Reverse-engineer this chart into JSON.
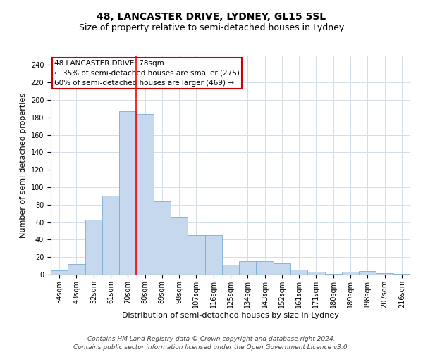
{
  "title": "48, LANCASTER DRIVE, LYDNEY, GL15 5SL",
  "subtitle": "Size of property relative to semi-detached houses in Lydney",
  "xlabel": "Distribution of semi-detached houses by size in Lydney",
  "ylabel": "Number of semi-detached properties",
  "categories": [
    "34sqm",
    "43sqm",
    "52sqm",
    "61sqm",
    "70sqm",
    "80sqm",
    "89sqm",
    "98sqm",
    "107sqm",
    "116sqm",
    "125sqm",
    "134sqm",
    "143sqm",
    "152sqm",
    "161sqm",
    "171sqm",
    "180sqm",
    "189sqm",
    "198sqm",
    "207sqm",
    "216sqm"
  ],
  "values": [
    5,
    12,
    63,
    90,
    187,
    184,
    84,
    66,
    45,
    45,
    11,
    15,
    15,
    13,
    6,
    3,
    1,
    3,
    4,
    2,
    1
  ],
  "bar_color": "#c5d8ed",
  "bar_edge_color": "#7aadd4",
  "red_line_x": 4.5,
  "annotation_title": "48 LANCASTER DRIVE: 78sqm",
  "annotation_line1": "← 35% of semi-detached houses are smaller (275)",
  "annotation_line2": "60% of semi-detached houses are larger (469) →",
  "ylim": [
    0,
    250
  ],
  "yticks": [
    0,
    20,
    40,
    60,
    80,
    100,
    120,
    140,
    160,
    180,
    200,
    220,
    240
  ],
  "footer_line1": "Contains HM Land Registry data © Crown copyright and database right 2024.",
  "footer_line2": "Contains public sector information licensed under the Open Government Licence v3.0.",
  "background_color": "#ffffff",
  "grid_color": "#d4dce8",
  "annotation_box_color": "#ffffff",
  "annotation_box_edge_color": "#cc0000",
  "title_fontsize": 10,
  "subtitle_fontsize": 9,
  "axis_label_fontsize": 8,
  "tick_fontsize": 7,
  "annotation_fontsize": 7.5,
  "footer_fontsize": 6.5
}
